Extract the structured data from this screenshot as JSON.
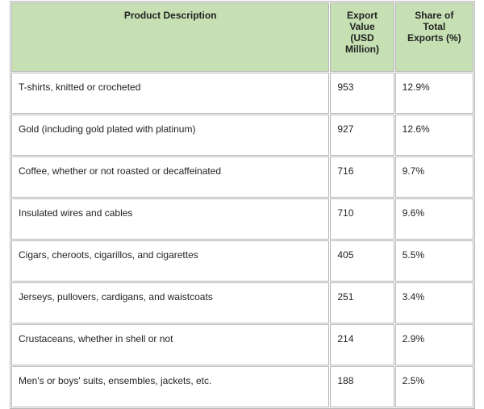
{
  "table": {
    "header": [
      "Product Description",
      "Export Value (USD Million)",
      "Share of Total Exports (%)"
    ],
    "rows": [
      [
        "T-shirts, knitted or crocheted",
        953,
        "12.9%"
      ],
      [
        "Gold (including gold plated with platinum)",
        927,
        "12.6%"
      ],
      [
        "Coffee, whether or not roasted or decaffeinated",
        716,
        "9.7%"
      ],
      [
        "Insulated wires and cables",
        710,
        "9.6%"
      ],
      [
        "Cigars, cheroots, cigarillos, and cigarettes",
        405,
        "5.5%"
      ],
      [
        "Jerseys, pullovers, cardigans, and waistcoats",
        251,
        "3.4%"
      ],
      [
        "Crustaceans, whether in shell or not",
        214,
        "2.9%"
      ],
      [
        "Men's or boys' suits, ensembles, jackets, etc.",
        188,
        "2.5%"
      ]
    ]
  }
}
